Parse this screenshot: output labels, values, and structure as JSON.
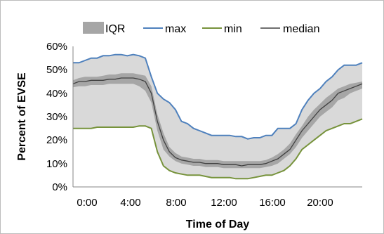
{
  "chart_data": {
    "type": "area",
    "xlabel": "Time of Day",
    "ylabel": "Percent of  EVSE",
    "xlim": [
      0,
      24
    ],
    "ylim": [
      0,
      60
    ],
    "y_ticks": [
      "0%",
      "10%",
      "20%",
      "30%",
      "40%",
      "50%",
      "60%"
    ],
    "y_tick_values": [
      0,
      10,
      20,
      30,
      40,
      50,
      60
    ],
    "x_ticks": [
      "0:00",
      "4:00",
      "8:00",
      "12:00",
      "16:00",
      "20:00"
    ],
    "x_tick_values": [
      0,
      4,
      8,
      12,
      16,
      20
    ],
    "grid": false,
    "legend_position": "top",
    "colors": {
      "iqr_outer": "#d9d9d9",
      "iqr_inner": "#a6a6a6",
      "max": "#4f81bd",
      "min": "#77933c",
      "median": "#404040"
    },
    "legend": [
      {
        "key": "iqr",
        "label": "IQR"
      },
      {
        "key": "max",
        "label": "max"
      },
      {
        "key": "min",
        "label": "min"
      },
      {
        "key": "median",
        "label": "median"
      }
    ],
    "x": [
      0,
      0.5,
      1,
      1.5,
      2,
      2.5,
      3,
      3.5,
      4,
      4.5,
      5,
      5.5,
      6,
      6.5,
      7,
      7.5,
      8,
      8.5,
      9,
      9.5,
      10,
      10.5,
      11,
      11.5,
      12,
      12.5,
      13,
      13.5,
      14,
      14.5,
      15,
      15.5,
      16,
      16.5,
      17,
      17.5,
      18,
      18.5,
      19,
      19.5,
      20,
      20.5,
      21,
      21.5,
      22,
      22.5,
      23,
      23.5,
      24
    ],
    "series": [
      {
        "name": "max",
        "values": [
          53,
          53,
          54,
          55,
          55,
          56,
          56,
          56.5,
          56.5,
          56,
          56.5,
          56,
          55,
          47,
          40,
          37.5,
          36,
          33,
          28,
          27,
          25,
          24,
          23,
          22,
          22,
          22,
          22,
          21.5,
          21.5,
          20.5,
          21,
          21,
          22,
          22,
          25,
          25,
          25,
          27,
          33,
          37,
          40,
          42,
          45,
          47,
          50,
          52,
          52,
          52,
          53
        ]
      },
      {
        "name": "min",
        "values": [
          25,
          25,
          25,
          25,
          25.5,
          25.5,
          25.5,
          25.5,
          25.5,
          25.5,
          25.5,
          26,
          26,
          25,
          15,
          9,
          7,
          6,
          5.5,
          5,
          5,
          5,
          4.5,
          4,
          4,
          4,
          4,
          3.5,
          3.5,
          3.5,
          4,
          4.5,
          5,
          5,
          6,
          7,
          9,
          12,
          16,
          18,
          20,
          22,
          24,
          25,
          26,
          27,
          27,
          28,
          29
        ]
      },
      {
        "name": "median",
        "values": [
          44,
          45,
          45,
          45.5,
          45.5,
          45.5,
          46,
          46,
          46.5,
          46.5,
          46.5,
          46,
          45,
          40,
          28,
          20,
          15,
          12.5,
          11.5,
          11,
          10.5,
          10.5,
          10,
          10,
          10,
          9.5,
          9.5,
          9.5,
          9,
          9.5,
          9.5,
          9.5,
          10,
          11,
          12,
          14,
          16,
          20,
          24,
          27,
          30,
          33,
          35,
          37,
          40,
          41,
          42,
          43,
          44
        ]
      },
      {
        "name": "IQR lower",
        "values": [
          42.5,
          43,
          43,
          43.5,
          43.5,
          43.5,
          44,
          44,
          44,
          44,
          44,
          43,
          41,
          36,
          24,
          16,
          13,
          11,
          10,
          9.5,
          9,
          9,
          8.5,
          8.5,
          8.5,
          8,
          8,
          8,
          8,
          8,
          8,
          8,
          8.5,
          9,
          10,
          12,
          14,
          17,
          21,
          24,
          27,
          30,
          32,
          34,
          37,
          38,
          40,
          41,
          42
        ]
      },
      {
        "name": "IQR upper",
        "values": [
          45.5,
          46.5,
          47,
          47,
          47,
          47.5,
          48,
          48,
          48.5,
          48.5,
          48.5,
          48,
          47.5,
          43,
          31,
          23,
          17,
          14.5,
          13,
          12.5,
          12,
          12,
          11.5,
          11.5,
          11.5,
          11,
          11,
          11,
          11,
          11,
          11,
          11,
          11.5,
          12.5,
          14,
          16,
          18.5,
          22.5,
          26,
          30,
          33,
          35.5,
          38,
          40,
          42,
          43,
          44,
          44.5,
          45
        ]
      }
    ]
  }
}
